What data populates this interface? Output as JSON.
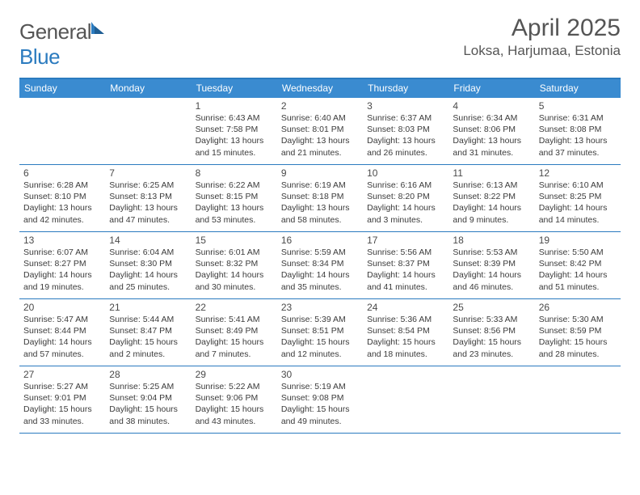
{
  "logo": {
    "part1": "General",
    "part2": "Blue"
  },
  "title": "April 2025",
  "location": "Loksa, Harjumaa, Estonia",
  "colors": {
    "header_bg": "#3a8bd0",
    "header_border": "#2b7bbf",
    "text": "#3b3b3b",
    "title_text": "#555555"
  },
  "daysOfWeek": [
    "Sunday",
    "Monday",
    "Tuesday",
    "Wednesday",
    "Thursday",
    "Friday",
    "Saturday"
  ],
  "weeks": [
    [
      {
        "n": "",
        "sunrise": "",
        "sunset": "",
        "daylight": ""
      },
      {
        "n": "",
        "sunrise": "",
        "sunset": "",
        "daylight": ""
      },
      {
        "n": "1",
        "sunrise": "Sunrise: 6:43 AM",
        "sunset": "Sunset: 7:58 PM",
        "daylight": "Daylight: 13 hours and 15 minutes."
      },
      {
        "n": "2",
        "sunrise": "Sunrise: 6:40 AM",
        "sunset": "Sunset: 8:01 PM",
        "daylight": "Daylight: 13 hours and 21 minutes."
      },
      {
        "n": "3",
        "sunrise": "Sunrise: 6:37 AM",
        "sunset": "Sunset: 8:03 PM",
        "daylight": "Daylight: 13 hours and 26 minutes."
      },
      {
        "n": "4",
        "sunrise": "Sunrise: 6:34 AM",
        "sunset": "Sunset: 8:06 PM",
        "daylight": "Daylight: 13 hours and 31 minutes."
      },
      {
        "n": "5",
        "sunrise": "Sunrise: 6:31 AM",
        "sunset": "Sunset: 8:08 PM",
        "daylight": "Daylight: 13 hours and 37 minutes."
      }
    ],
    [
      {
        "n": "6",
        "sunrise": "Sunrise: 6:28 AM",
        "sunset": "Sunset: 8:10 PM",
        "daylight": "Daylight: 13 hours and 42 minutes."
      },
      {
        "n": "7",
        "sunrise": "Sunrise: 6:25 AM",
        "sunset": "Sunset: 8:13 PM",
        "daylight": "Daylight: 13 hours and 47 minutes."
      },
      {
        "n": "8",
        "sunrise": "Sunrise: 6:22 AM",
        "sunset": "Sunset: 8:15 PM",
        "daylight": "Daylight: 13 hours and 53 minutes."
      },
      {
        "n": "9",
        "sunrise": "Sunrise: 6:19 AM",
        "sunset": "Sunset: 8:18 PM",
        "daylight": "Daylight: 13 hours and 58 minutes."
      },
      {
        "n": "10",
        "sunrise": "Sunrise: 6:16 AM",
        "sunset": "Sunset: 8:20 PM",
        "daylight": "Daylight: 14 hours and 3 minutes."
      },
      {
        "n": "11",
        "sunrise": "Sunrise: 6:13 AM",
        "sunset": "Sunset: 8:22 PM",
        "daylight": "Daylight: 14 hours and 9 minutes."
      },
      {
        "n": "12",
        "sunrise": "Sunrise: 6:10 AM",
        "sunset": "Sunset: 8:25 PM",
        "daylight": "Daylight: 14 hours and 14 minutes."
      }
    ],
    [
      {
        "n": "13",
        "sunrise": "Sunrise: 6:07 AM",
        "sunset": "Sunset: 8:27 PM",
        "daylight": "Daylight: 14 hours and 19 minutes."
      },
      {
        "n": "14",
        "sunrise": "Sunrise: 6:04 AM",
        "sunset": "Sunset: 8:30 PM",
        "daylight": "Daylight: 14 hours and 25 minutes."
      },
      {
        "n": "15",
        "sunrise": "Sunrise: 6:01 AM",
        "sunset": "Sunset: 8:32 PM",
        "daylight": "Daylight: 14 hours and 30 minutes."
      },
      {
        "n": "16",
        "sunrise": "Sunrise: 5:59 AM",
        "sunset": "Sunset: 8:34 PM",
        "daylight": "Daylight: 14 hours and 35 minutes."
      },
      {
        "n": "17",
        "sunrise": "Sunrise: 5:56 AM",
        "sunset": "Sunset: 8:37 PM",
        "daylight": "Daylight: 14 hours and 41 minutes."
      },
      {
        "n": "18",
        "sunrise": "Sunrise: 5:53 AM",
        "sunset": "Sunset: 8:39 PM",
        "daylight": "Daylight: 14 hours and 46 minutes."
      },
      {
        "n": "19",
        "sunrise": "Sunrise: 5:50 AM",
        "sunset": "Sunset: 8:42 PM",
        "daylight": "Daylight: 14 hours and 51 minutes."
      }
    ],
    [
      {
        "n": "20",
        "sunrise": "Sunrise: 5:47 AM",
        "sunset": "Sunset: 8:44 PM",
        "daylight": "Daylight: 14 hours and 57 minutes."
      },
      {
        "n": "21",
        "sunrise": "Sunrise: 5:44 AM",
        "sunset": "Sunset: 8:47 PM",
        "daylight": "Daylight: 15 hours and 2 minutes."
      },
      {
        "n": "22",
        "sunrise": "Sunrise: 5:41 AM",
        "sunset": "Sunset: 8:49 PM",
        "daylight": "Daylight: 15 hours and 7 minutes."
      },
      {
        "n": "23",
        "sunrise": "Sunrise: 5:39 AM",
        "sunset": "Sunset: 8:51 PM",
        "daylight": "Daylight: 15 hours and 12 minutes."
      },
      {
        "n": "24",
        "sunrise": "Sunrise: 5:36 AM",
        "sunset": "Sunset: 8:54 PM",
        "daylight": "Daylight: 15 hours and 18 minutes."
      },
      {
        "n": "25",
        "sunrise": "Sunrise: 5:33 AM",
        "sunset": "Sunset: 8:56 PM",
        "daylight": "Daylight: 15 hours and 23 minutes."
      },
      {
        "n": "26",
        "sunrise": "Sunrise: 5:30 AM",
        "sunset": "Sunset: 8:59 PM",
        "daylight": "Daylight: 15 hours and 28 minutes."
      }
    ],
    [
      {
        "n": "27",
        "sunrise": "Sunrise: 5:27 AM",
        "sunset": "Sunset: 9:01 PM",
        "daylight": "Daylight: 15 hours and 33 minutes."
      },
      {
        "n": "28",
        "sunrise": "Sunrise: 5:25 AM",
        "sunset": "Sunset: 9:04 PM",
        "daylight": "Daylight: 15 hours and 38 minutes."
      },
      {
        "n": "29",
        "sunrise": "Sunrise: 5:22 AM",
        "sunset": "Sunset: 9:06 PM",
        "daylight": "Daylight: 15 hours and 43 minutes."
      },
      {
        "n": "30",
        "sunrise": "Sunrise: 5:19 AM",
        "sunset": "Sunset: 9:08 PM",
        "daylight": "Daylight: 15 hours and 49 minutes."
      },
      {
        "n": "",
        "sunrise": "",
        "sunset": "",
        "daylight": ""
      },
      {
        "n": "",
        "sunrise": "",
        "sunset": "",
        "daylight": ""
      },
      {
        "n": "",
        "sunrise": "",
        "sunset": "",
        "daylight": ""
      }
    ]
  ]
}
